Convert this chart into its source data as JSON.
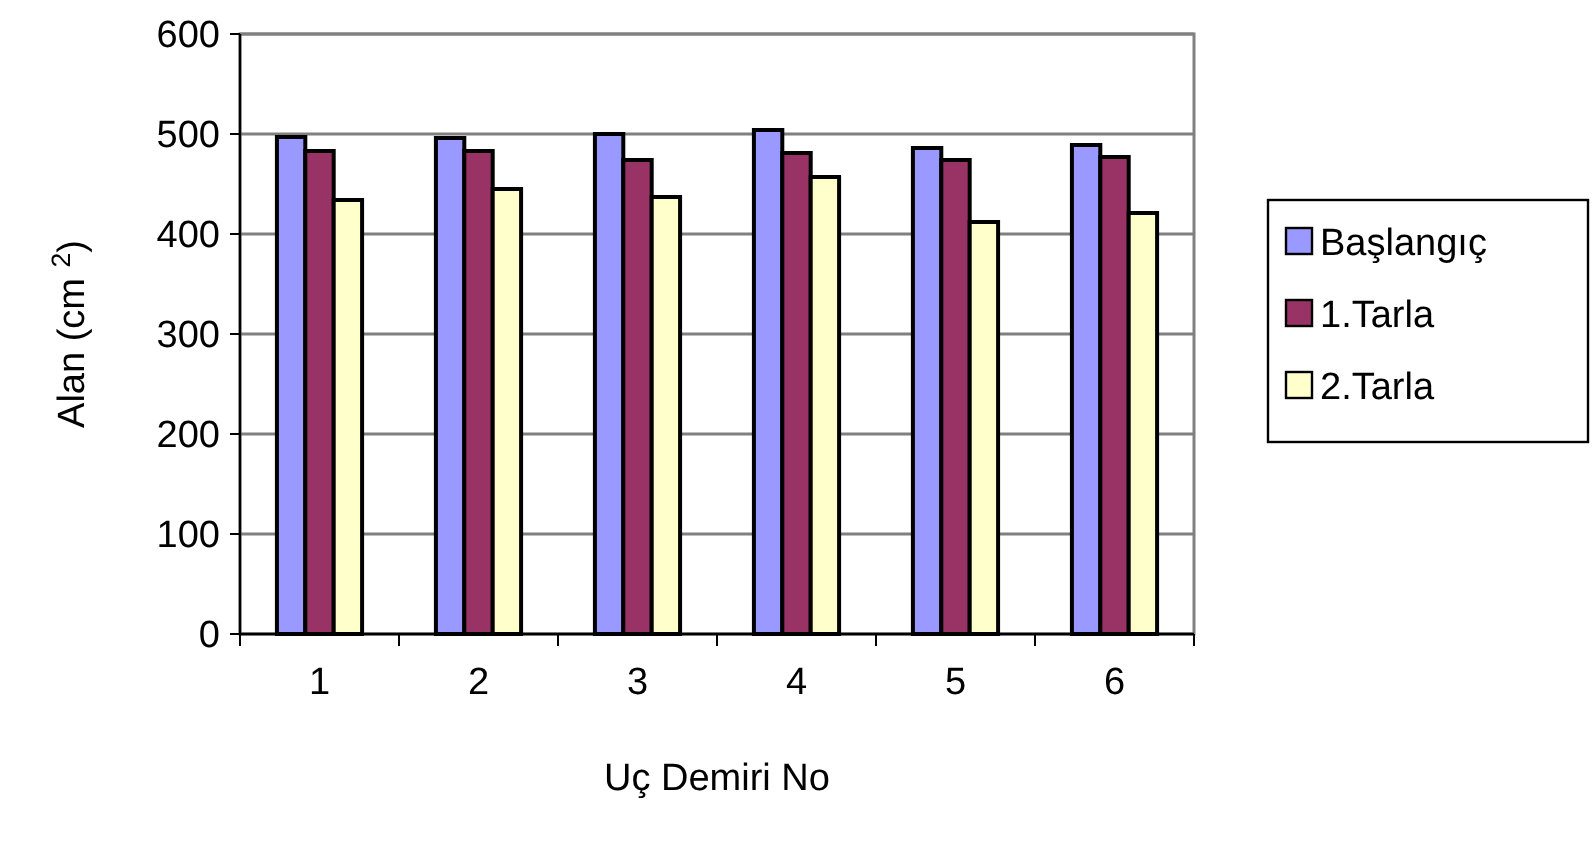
{
  "chart_data": {
    "type": "bar",
    "xlabel": "Uç Demiri No",
    "ylabel": "Alan (cm $^{2}$)",
    "categories": [
      "1",
      "2",
      "3",
      "4",
      "5",
      "6"
    ],
    "series": [
      {
        "name": "Başlangıç",
        "color": "#9999ff",
        "values": [
          497,
          496,
          500,
          504,
          486,
          489
        ]
      },
      {
        "name": "1.Tarla",
        "color": "#993366",
        "values": [
          483,
          483,
          474,
          481,
          474,
          477
        ]
      },
      {
        "name": "2.Tarla",
        "color": "#ffffcc",
        "values": [
          434,
          445,
          437,
          457,
          412,
          421
        ]
      }
    ],
    "ylim": [
      0,
      600
    ],
    "yticks": [
      0,
      100,
      200,
      300,
      400,
      500,
      600
    ],
    "grid": "y",
    "legend": "right"
  }
}
